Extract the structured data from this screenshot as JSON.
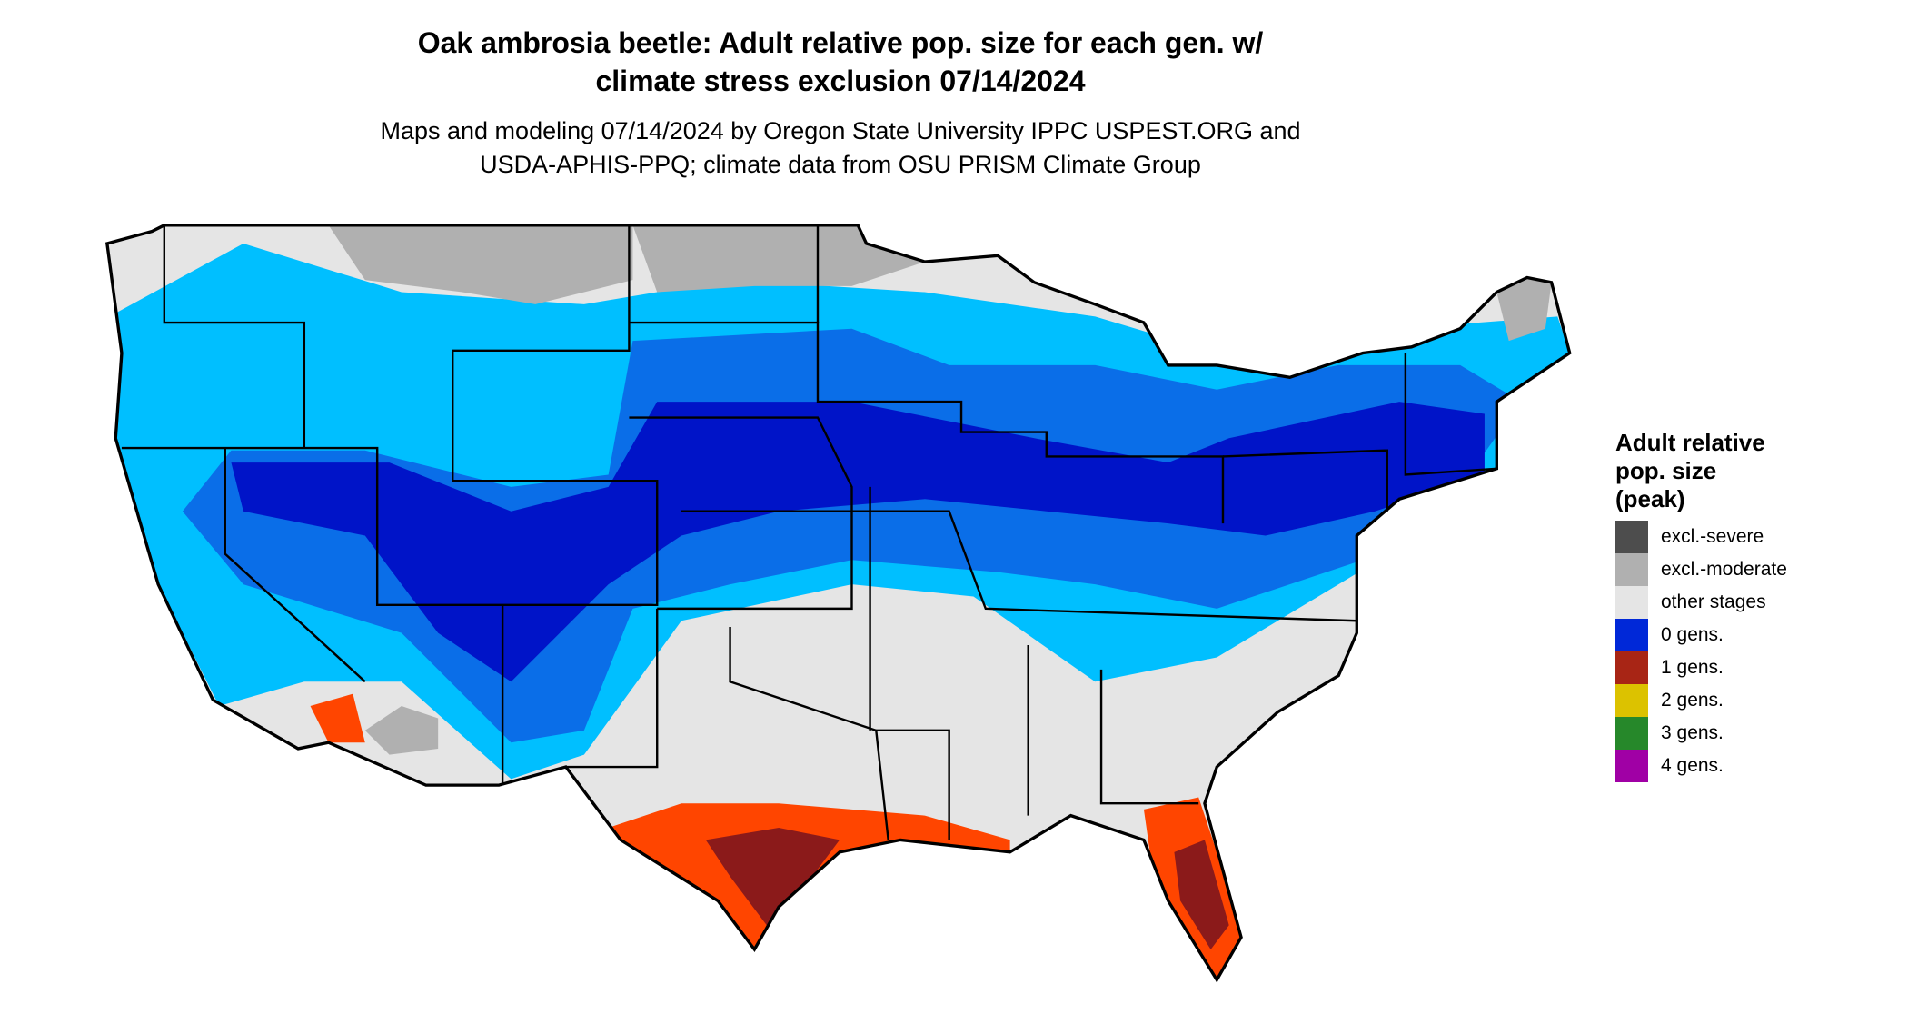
{
  "title": {
    "line1": "Oak ambrosia beetle: Adult relative pop. size for each gen. w/",
    "line2": "climate stress exclusion 07/14/2024"
  },
  "subtitle": {
    "line1": "Maps and modeling 07/14/2024 by Oregon State University IPPC USPEST.ORG and",
    "line2": "USDA-APHIS-PPQ; climate data from OSU PRISM Climate Group"
  },
  "legend": {
    "title_line1": "Adult relative",
    "title_line2": "pop. size",
    "title_line3": "(peak)",
    "items": [
      {
        "label": "excl.-severe",
        "color": "#4d4d4d"
      },
      {
        "label": "excl.-moderate",
        "color": "#b0b0b0"
      },
      {
        "label": "other stages",
        "color": "#e5e5e5"
      },
      {
        "label": "0 gens.",
        "color": "#0028d8"
      },
      {
        "label": "1 gens.",
        "color": "#a82515"
      },
      {
        "label": "2 gens.",
        "color": "#dcc200"
      },
      {
        "label": "3 gens.",
        "color": "#26882a"
      },
      {
        "label": "4 gens.",
        "color": "#a000a5"
      }
    ]
  },
  "map_colors": {
    "background_land": "#e5e5e5",
    "light_blue": "#00bfff",
    "mid_blue": "#0a6ee8",
    "dark_blue": "#0014c8",
    "orange": "#ff4500",
    "dark_red": "#8b1a1a",
    "gray": "#b0b0b0",
    "border": "#000000"
  }
}
